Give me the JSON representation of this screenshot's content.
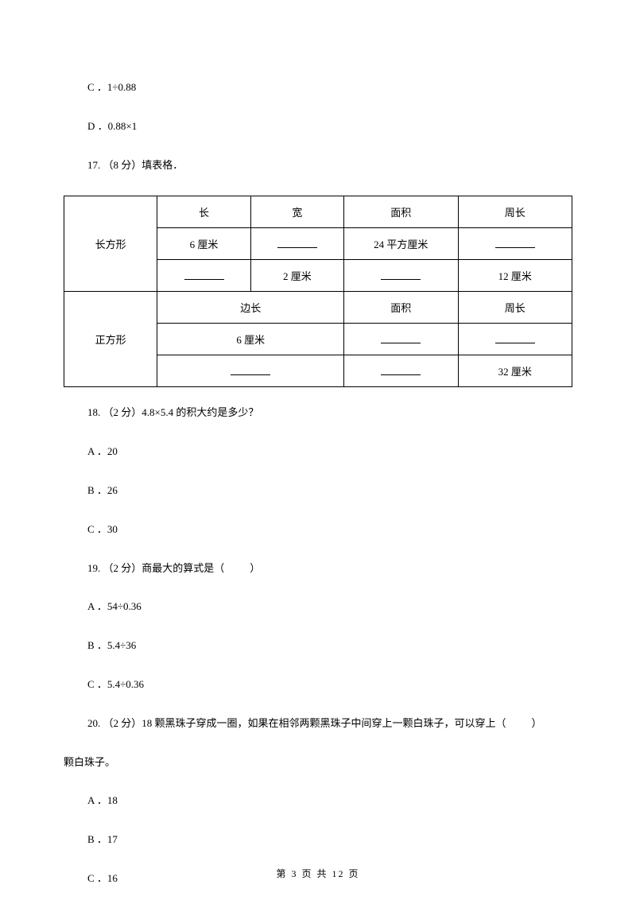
{
  "opts_top": {
    "c": "C ．1÷0.88",
    "d": "D ．0.88×1"
  },
  "q17": {
    "title": "17. （8 分）填表格．",
    "table": {
      "row1": {
        "shape": "长方形",
        "c2": "长",
        "c3": "宽",
        "c4": "面积",
        "c5": "周长"
      },
      "row2": {
        "c2": "6 厘米",
        "c4": "24 平方厘米"
      },
      "row3": {
        "c3": "2 厘米",
        "c5": "12 厘米"
      },
      "row4": {
        "shape": "正方形",
        "merged": "边长",
        "c4": "面积",
        "c5": "周长"
      },
      "row5": {
        "merged": "6 厘米"
      },
      "row6": {
        "c5": "32 厘米"
      }
    }
  },
  "q18": {
    "title": "18. （2 分）4.8×5.4 的积大约是多少？",
    "a": "A ．20",
    "b": "B ．26",
    "c": "C ．30"
  },
  "q19": {
    "title_pre": "19. （2 分）商最大的算式是（",
    "title_post": "）",
    "a": "A ．54÷0.36",
    "b": "B ．5.4÷36",
    "c": "C ．5.4÷0.36"
  },
  "q20": {
    "title_pre": "20. （2 分）18 颗黑珠子穿成一圈，如果在相邻两颗黑珠子中间穿上一颗白珠子，可以穿上（",
    "title_post": "）",
    "title_line2": "颗白珠子。",
    "a": "A ．18",
    "b": "B ．17",
    "c": "C ．16"
  },
  "footer": "第 3 页 共 12 页"
}
